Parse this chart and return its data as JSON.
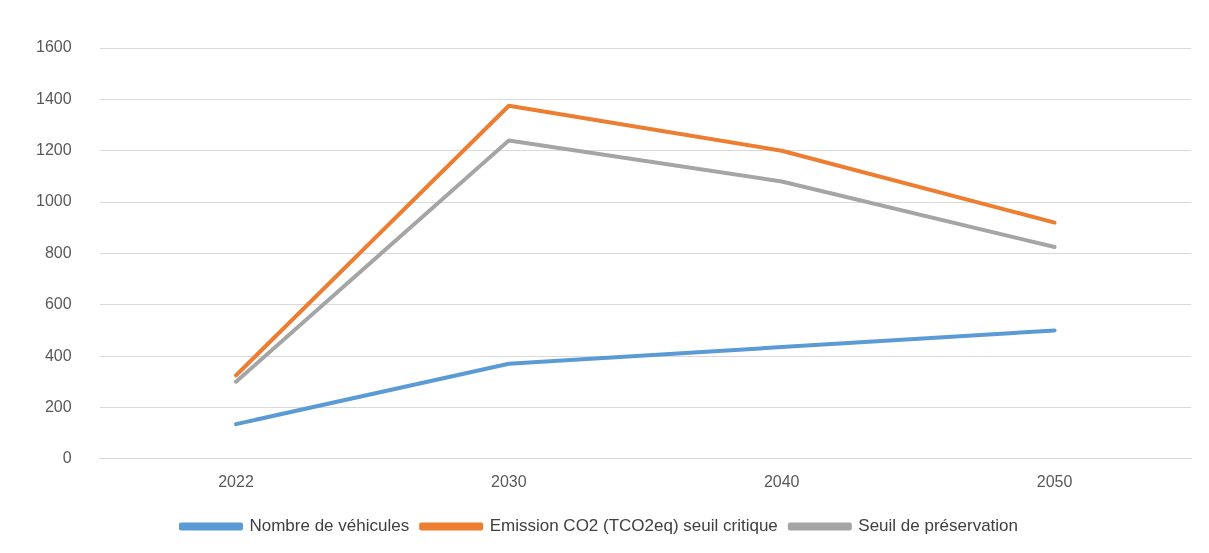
{
  "chart_data": {
    "type": "line",
    "categories": [
      "2022",
      "2030",
      "2040",
      "2050"
    ],
    "series": [
      {
        "name": "Nombre de véhicules",
        "color": "#5b9bd5",
        "values": [
          135,
          370,
          435,
          500
        ]
      },
      {
        "name": "Emission CO2 (TCO2eq) seuil critique",
        "color": "#ed7d31",
        "values": [
          325,
          1375,
          1200,
          920
        ]
      },
      {
        "name": "Seuil de préservation",
        "color": "#a5a5a5",
        "values": [
          300,
          1240,
          1080,
          825
        ]
      }
    ],
    "ylim": [
      0,
      1600
    ],
    "yticks": [
      0,
      200,
      400,
      600,
      800,
      1000,
      1200,
      1400,
      1600
    ],
    "grid": "y",
    "legend": "bottom",
    "marker": "none",
    "line_style": "solid"
  }
}
